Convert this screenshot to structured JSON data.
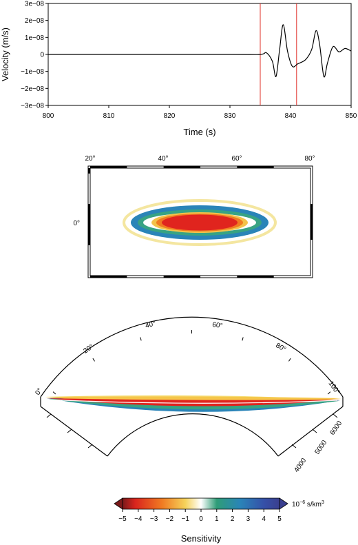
{
  "chart_data": [
    {
      "type": "line",
      "xlabel": "Time (s)",
      "ylabel": "Velocity (m/s)",
      "xlim": [
        800,
        850
      ],
      "ylim": [
        -3e-08,
        3e-08
      ],
      "xticks": [
        "800",
        "810",
        "820",
        "830",
        "840",
        "850"
      ],
      "yticks": [
        "3e−08",
        "2e−08",
        "1e−08",
        "0",
        "−1e−08",
        "−2e−08",
        "−3e−08"
      ],
      "window_lines_x": [
        835,
        841
      ],
      "window_line_color": "#e0302a",
      "series": [
        {
          "x": [
            800,
            830,
            835,
            836,
            837,
            837.6,
            838.2,
            838.8,
            839.5,
            840.3,
            841.2,
            842.5,
            843.5,
            844.2,
            844.8,
            845.5,
            846.1,
            847,
            848,
            849,
            850
          ],
          "y": [
            0,
            0,
            0,
            1e-09,
            -4e-09,
            -1.3e-08,
            3e-09,
            1.75e-08,
            2e-09,
            -7e-09,
            -5.5e-09,
            -3e-09,
            3e-09,
            1.4e-08,
            6e-09,
            -1.3e-08,
            -5e-09,
            4.5e-09,
            1.5e-09,
            3.5e-09,
            2e-09
          ]
        }
      ]
    },
    {
      "type": "heatmap",
      "map": "sensitivity kernel, map view",
      "lon_ticks": [
        "20°",
        "40°",
        "60°",
        "80°"
      ],
      "lat_ticks": [
        "0°"
      ],
      "lon_range": [
        20,
        80
      ],
      "lat_range": [
        -15,
        15
      ]
    },
    {
      "type": "heatmap",
      "map": "sensitivity kernel, cross-section",
      "angle_ticks": [
        "0°",
        "20°",
        "40°",
        "60°",
        "80°",
        "100°"
      ],
      "radius_ticks": [
        "4000",
        "5000",
        "6000"
      ]
    }
  ],
  "colorbar": {
    "ticks": [
      "−5",
      "−4",
      "−3",
      "−2",
      "−1",
      "0",
      "1",
      "2",
      "3",
      "4",
      "5"
    ],
    "range": [
      -5,
      5
    ],
    "unit_prefix": "10",
    "unit_exp": "−6",
    "unit_suffix": " s/km",
    "unit_sup": "3",
    "label": "Sensitivity",
    "colors": [
      "#7a1a1a",
      "#d9241e",
      "#f07a22",
      "#f5c64a",
      "#ffffff",
      "#2e9d77",
      "#2a84b8",
      "#3550a8",
      "#3a3f8f"
    ]
  }
}
